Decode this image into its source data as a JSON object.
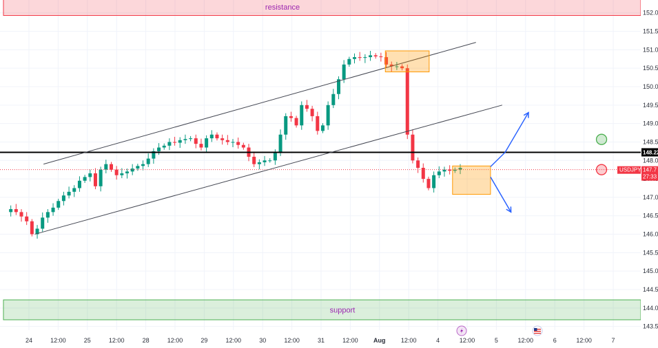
{
  "chart_data": {
    "type": "candlestick",
    "symbol": "USDJPY",
    "ylim": [
      143.4,
      152.2
    ],
    "y_ticks": [
      "152.00",
      "151.50",
      "151.00",
      "150.50",
      "150.00",
      "149.50",
      "149.00",
      "148.50",
      "148.00",
      "147.50",
      "147.00",
      "146.50",
      "146.00",
      "145.50",
      "145.00",
      "144.50",
      "144.00",
      "143.50"
    ],
    "x_ticks": [
      "24",
      "12:00",
      "25",
      "12:00",
      "28",
      "12:00",
      "29",
      "12:00",
      "30",
      "12:00",
      "31",
      "12:00",
      "Aug",
      "12:00",
      "4",
      "12:00",
      "5",
      "12:00",
      "6",
      "12:00",
      "7"
    ],
    "current_price": "147.7",
    "countdown": "27:33",
    "horizontal_level": "148.22",
    "zones": {
      "resistance": {
        "label": "resistance",
        "from": 151.93,
        "to": 152.4,
        "color": "#f23645"
      },
      "support": {
        "label": "support",
        "from": 143.68,
        "to": 144.22,
        "color": "#4caf50"
      }
    },
    "channel": {
      "upper": [
        [
          0.5,
          147.9
        ],
        [
          15.3,
          151.2
        ]
      ],
      "lower": [
        [
          0.2,
          146.0
        ],
        [
          16.2,
          149.5
        ]
      ]
    },
    "boxes": [
      {
        "x0": 12.2,
        "x1": 13.7,
        "y0": 150.4,
        "y1": 150.97,
        "color": "#ff9800"
      },
      {
        "x0": 14.5,
        "x1": 15.8,
        "y0": 147.08,
        "y1": 147.85,
        "color": "#ff9800"
      }
    ],
    "arrows": [
      {
        "points": [
          [
            15.8,
            147.83
          ],
          [
            16.3,
            148.22
          ],
          [
            17.1,
            149.3
          ]
        ]
      },
      {
        "points": [
          [
            15.8,
            147.55
          ],
          [
            16.5,
            146.6
          ]
        ]
      }
    ],
    "markers": [
      {
        "x": 19.6,
        "y": 148.57,
        "color": "#4caf50"
      },
      {
        "x": 19.6,
        "y": 147.75,
        "color": "#f23645"
      }
    ],
    "closes": [
      146.6,
      146.68,
      146.6,
      146.48,
      146.35,
      146.0,
      146.15,
      146.45,
      146.6,
      146.72,
      146.9,
      147.05,
      147.15,
      147.25,
      147.45,
      147.55,
      147.65,
      147.3,
      147.75,
      147.9,
      147.75,
      147.6,
      147.65,
      147.7,
      147.78,
      147.85,
      147.9,
      148.05,
      148.25,
      148.35,
      148.4,
      148.5,
      148.48,
      148.55,
      148.58,
      148.6,
      148.45,
      148.35,
      148.6,
      148.7,
      148.6,
      148.55,
      148.5,
      148.5,
      148.42,
      148.35,
      148.1,
      147.9,
      147.95,
      148.0,
      148.0,
      148.2,
      148.7,
      149.2,
      149.15,
      148.95,
      149.5,
      149.4,
      149.2,
      148.8,
      148.95,
      149.5,
      149.8,
      150.2,
      150.6,
      150.75,
      150.8,
      150.78,
      150.8,
      150.85,
      150.82,
      150.8,
      150.6,
      150.55,
      150.55,
      150.5,
      148.7,
      148.0,
      147.8,
      147.5,
      147.25,
      147.6,
      147.7,
      147.75,
      147.72,
      147.75,
      147.8
    ],
    "colors": {
      "up": "#089981",
      "down": "#f23645",
      "level": "#000000",
      "channel": "#434651",
      "box": "#ff9800",
      "arrow": "#2962ff",
      "grid": "#f0f3fa"
    }
  }
}
